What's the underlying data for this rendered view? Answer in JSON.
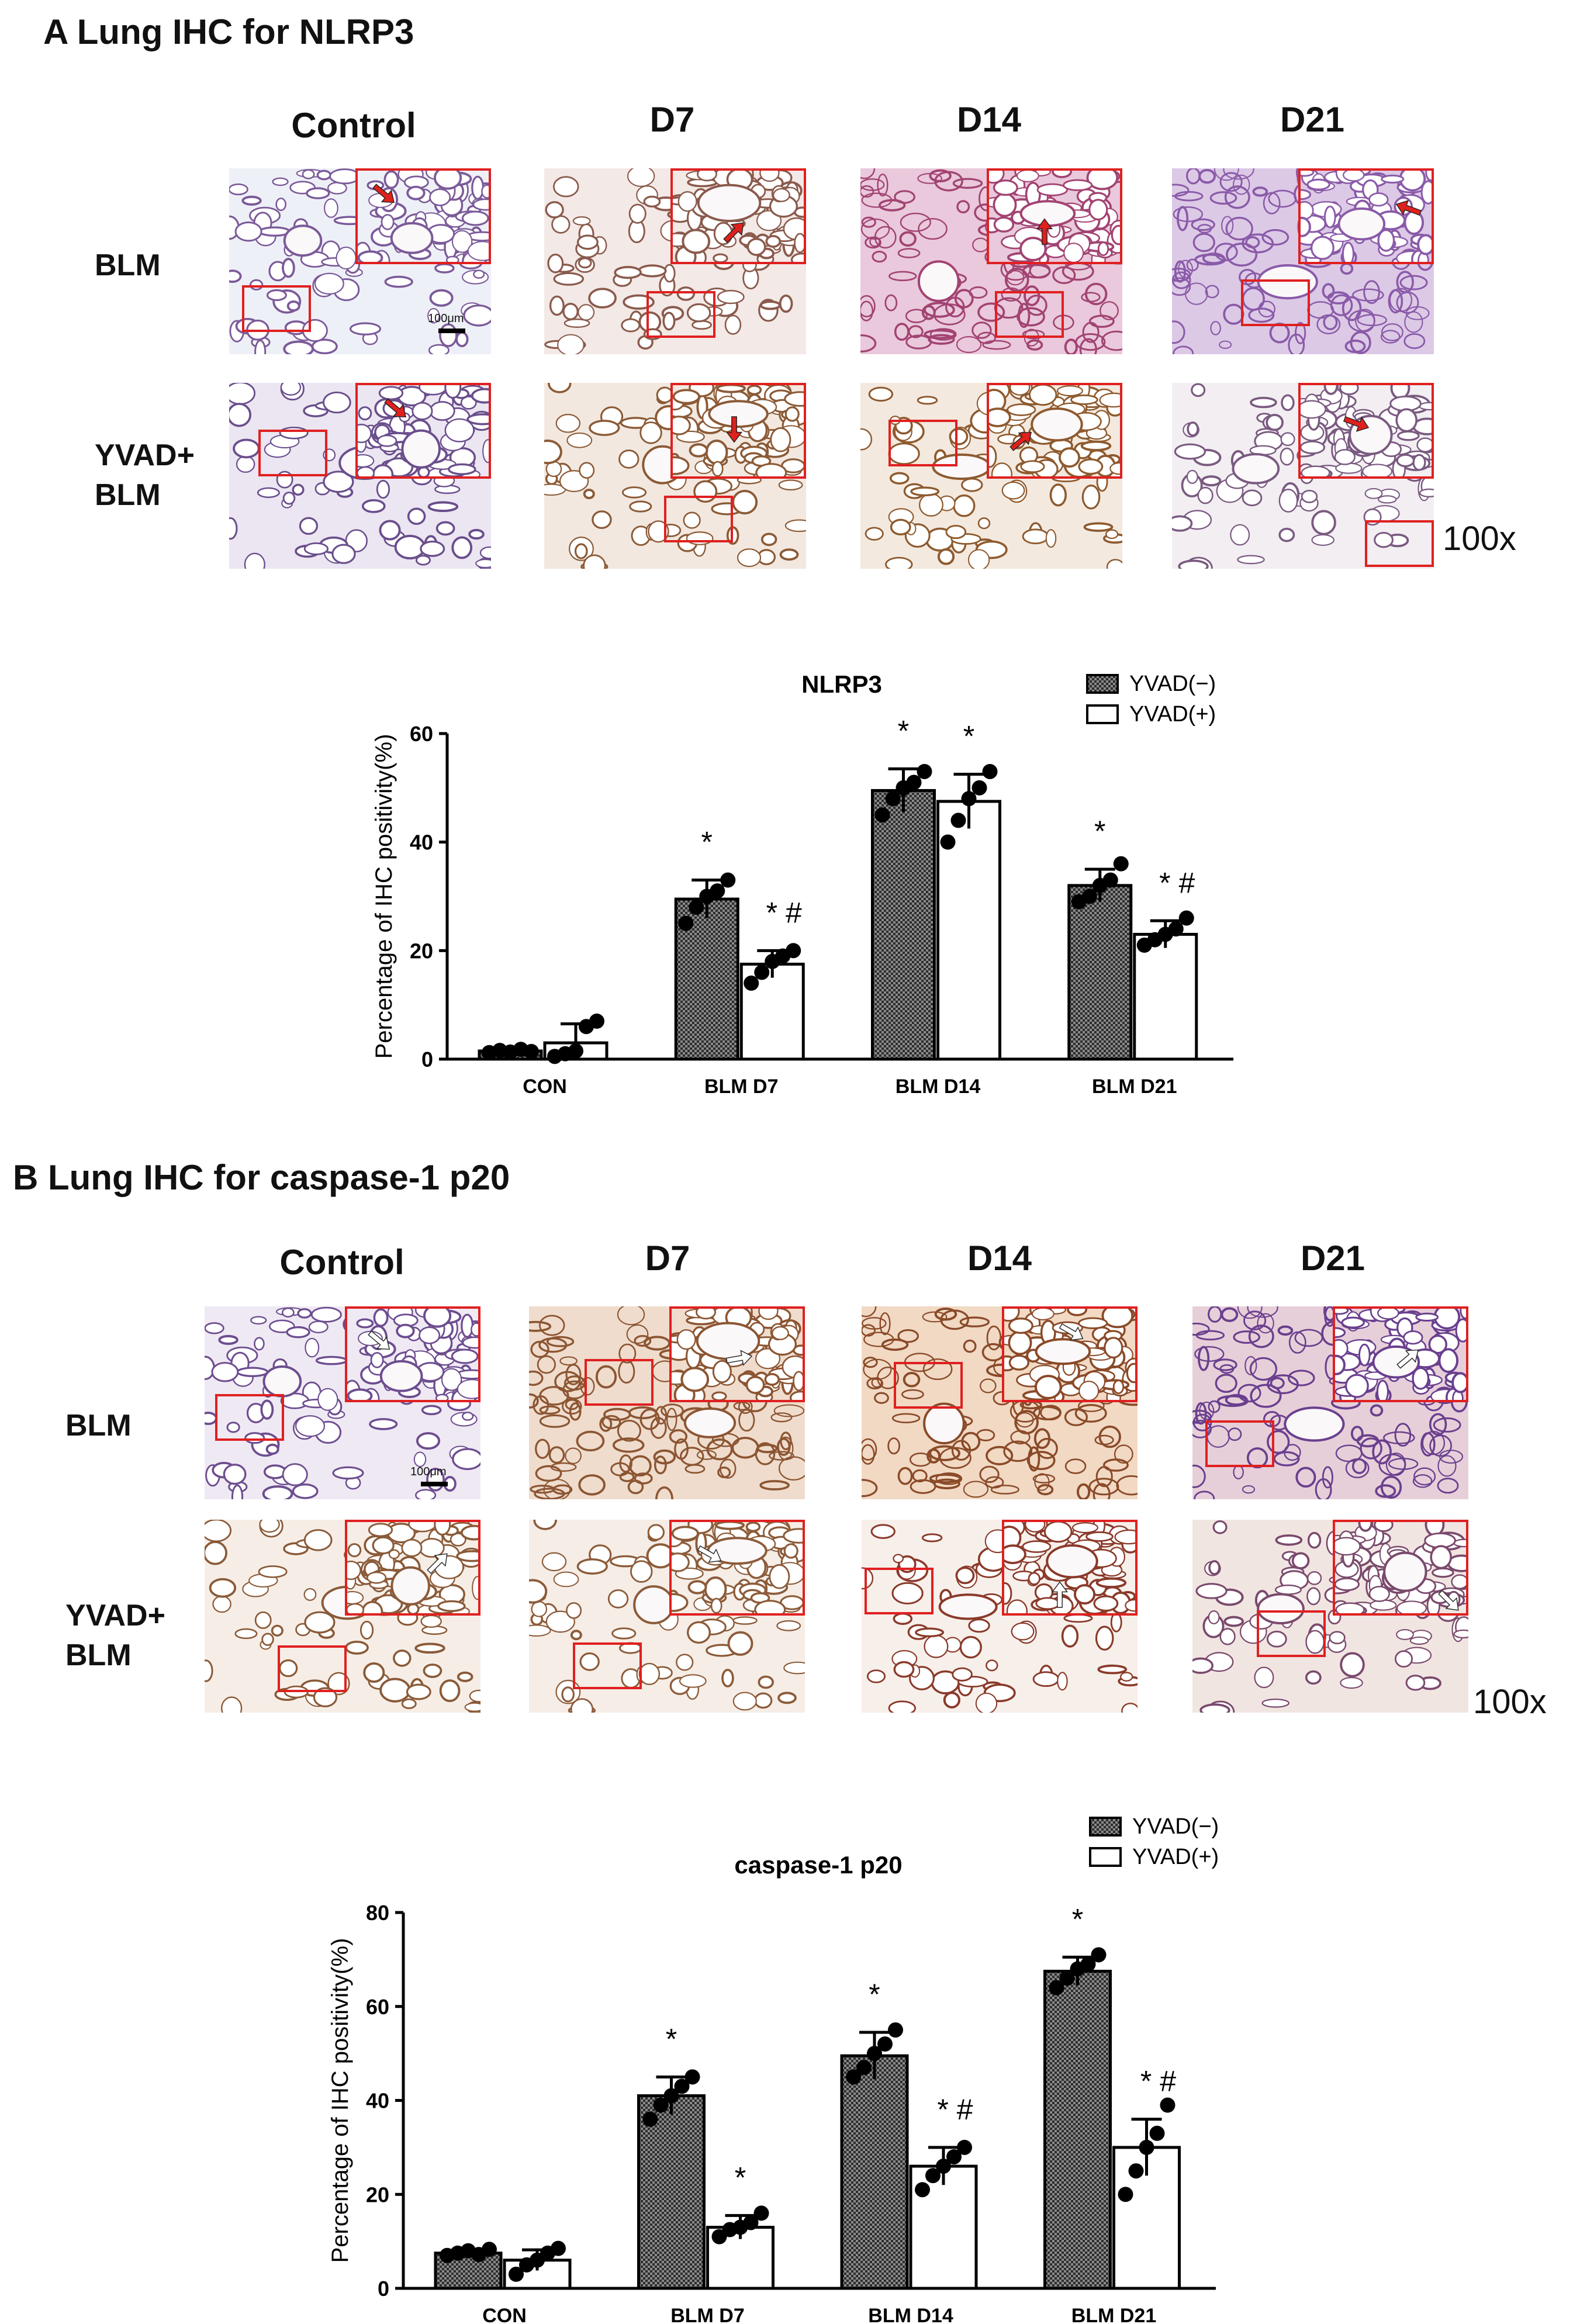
{
  "panels": [
    {
      "title": "A Lung IHC for NLRP3",
      "columns": [
        "Control",
        "D7",
        "D14",
        "D21"
      ],
      "rows": [
        "BLM",
        "YVAD+\nBLM"
      ],
      "magnification": "100x",
      "scale_bar": "100μm",
      "arrow_color": "#e0201c"
    },
    {
      "title": "B Lung IHC for caspase-1 p20",
      "columns": [
        "Control",
        "D7",
        "D14",
        "D21"
      ],
      "rows": [
        "BLM",
        "YVAD+\nBLM"
      ],
      "magnification": "100x",
      "scale_bar": "100μm",
      "arrow_color": "#ffffff"
    }
  ],
  "chart_data": [
    {
      "type": "bar",
      "title": "NLRP3",
      "ylabel": "Percentage of IHC positivity(%)",
      "xlabel": "",
      "categories": [
        "CON",
        "BLM D7",
        "BLM D14",
        "BLM D21"
      ],
      "ylim": [
        0,
        60
      ],
      "yticks": [
        0,
        20,
        40,
        60
      ],
      "legend_position": "top-right",
      "series": [
        {
          "name": "YVAD(−)",
          "style": "hatched",
          "values": [
            1.5,
            29.5,
            49.5,
            32
          ],
          "errors": [
            0.4,
            3.5,
            4,
            3
          ],
          "points": [
            [
              1.2,
              1.6,
              1.3,
              1.8,
              1.4
            ],
            [
              25,
              28,
              30,
              31,
              33
            ],
            [
              45,
              48,
              50,
              51,
              53
            ],
            [
              29,
              30,
              32,
              33,
              36
            ]
          ],
          "annotations": [
            "",
            "*",
            "*",
            "*"
          ]
        },
        {
          "name": "YVAD(+)",
          "style": "white",
          "values": [
            3,
            17.5,
            47.5,
            23
          ],
          "errors": [
            3.5,
            2.5,
            5,
            2.5
          ],
          "points": [
            [
              0.5,
              1,
              1.5,
              6,
              7
            ],
            [
              14,
              16,
              18,
              19,
              20
            ],
            [
              40,
              44,
              48,
              50,
              53
            ],
            [
              21,
              22,
              23,
              24,
              26
            ]
          ],
          "annotations": [
            "",
            "*#",
            "*",
            "*#"
          ]
        }
      ]
    },
    {
      "type": "bar",
      "title": "caspase-1 p20",
      "ylabel": "Percentage of IHC positivity(%)",
      "xlabel": "",
      "categories": [
        "CON",
        "BLM D7",
        "BLM D14",
        "BLM D21"
      ],
      "ylim": [
        0,
        80
      ],
      "yticks": [
        0,
        20,
        40,
        60,
        80
      ],
      "legend_position": "top-right",
      "series": [
        {
          "name": "YVAD(−)",
          "style": "hatched",
          "values": [
            7.5,
            41,
            49.5,
            67.5
          ],
          "errors": [
            0.8,
            4,
            5,
            3
          ],
          "points": [
            [
              7,
              7.5,
              8,
              7.2,
              8.3
            ],
            [
              36,
              39,
              41,
              43,
              45
            ],
            [
              45,
              47,
              50,
              52,
              55
            ],
            [
              64,
              66,
              68,
              69,
              71
            ]
          ],
          "annotations": [
            "",
            "*",
            "*",
            "*"
          ]
        },
        {
          "name": "YVAD(+)",
          "style": "white",
          "values": [
            6,
            13,
            26,
            30
          ],
          "errors": [
            2.2,
            2.5,
            4,
            6
          ],
          "points": [
            [
              3,
              5,
              6,
              7.5,
              8.5
            ],
            [
              11,
              12.5,
              13,
              14,
              16
            ],
            [
              21,
              24,
              26,
              28,
              30
            ],
            [
              20,
              25,
              30,
              33,
              39
            ]
          ],
          "annotations": [
            "",
            "*",
            "*#",
            "*#"
          ]
        }
      ]
    }
  ]
}
